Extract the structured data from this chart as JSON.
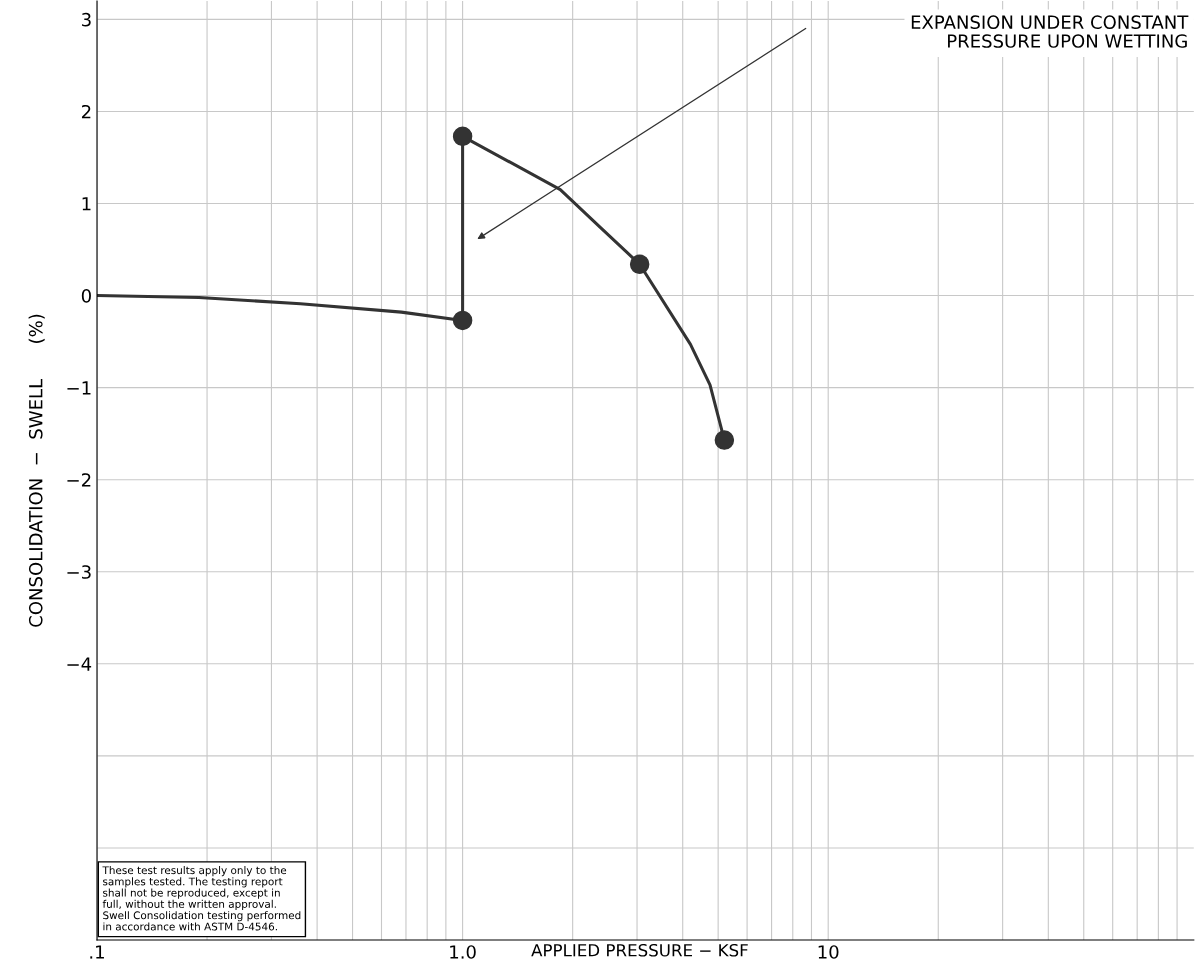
{
  "chart_data": {
    "type": "line",
    "xlabel": "APPLIED PRESSURE − KSF",
    "ylabel": "CONSOLIDATION  −  SWELL      (%)",
    "log": "x",
    "xlim": [
      0.1,
      100
    ],
    "xticks": [
      {
        "value": 0.1,
        "label": ".1"
      },
      {
        "value": 1,
        "label": "1.0"
      },
      10
    ],
    "ylim": [
      -7,
      3.2
    ],
    "yticks": [
      3,
      2,
      1,
      0,
      {
        "value": -1,
        "label": "−1"
      },
      {
        "value": -2,
        "label": "−2"
      },
      {
        "value": -3,
        "label": "−3"
      },
      {
        "value": -4,
        "label": "−4"
      },
      {
        "value": -5,
        "label": null
      },
      {
        "value": -6,
        "label": null
      }
    ],
    "grid": true,
    "series": [
      {
        "color": "#333333",
        "marker": "none",
        "x": [
          0.1,
          0.19,
          0.36,
          0.68,
          1.0,
          1.0,
          1.85,
          2.38,
          3.05,
          4.2,
          4.75,
          5.2
        ],
        "values": [
          0,
          -0.02,
          -0.09,
          -0.18,
          -0.27,
          1.73,
          1.15,
          0.74,
          0.34,
          -0.53,
          -0.97,
          -1.57
        ]
      },
      {
        "type": "scatter",
        "color": "#333333",
        "marker": "circle",
        "x": [
          1.0,
          1.0,
          3.05,
          5.2
        ],
        "values": [
          -0.27,
          1.73,
          0.34,
          -1.57
        ]
      }
    ],
    "annotations": [
      "EXPANSION UNDER CONSTANT\nPRESSURE UPON WETTING",
      "These test results apply only to the\nsamples tested. The testing report\nshall not be reproduced, except in\nfull, without the written approval.\nSwell Consolidation testing performed\nin accordance with ASTM D-4546."
    ]
  }
}
